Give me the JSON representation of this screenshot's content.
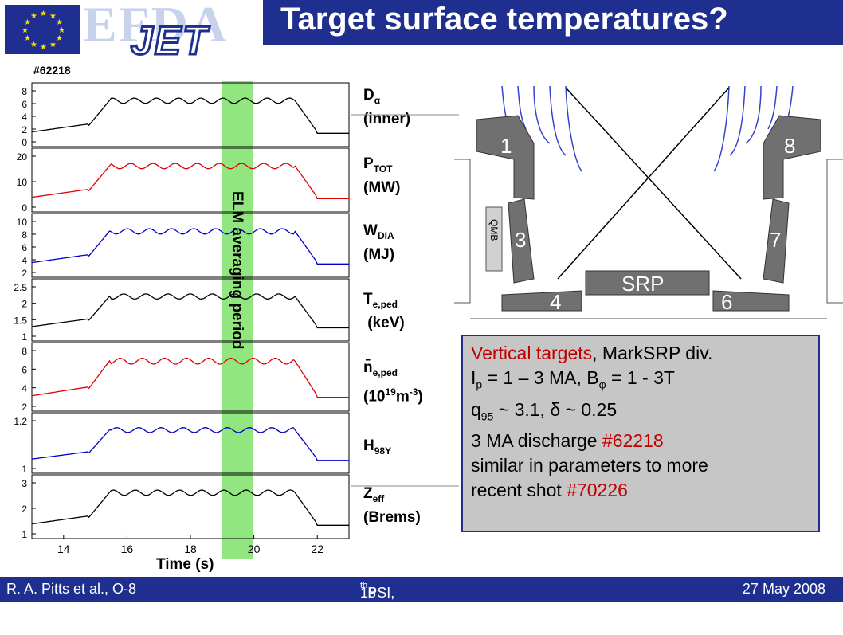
{
  "header": {
    "efda": "EFDA",
    "jet": "JET",
    "title": "Target surface temperatures?"
  },
  "plots": {
    "shot": "#62218",
    "band_label": "ELM averaging period",
    "xlabel": "Time (s)",
    "xticks": [
      "14",
      "16",
      "18",
      "20",
      "22"
    ],
    "panels": [
      {
        "label_main": "D",
        "label_sub": "α",
        "label_line2": "(inner)",
        "yticks": [
          "8",
          "6",
          "4",
          "2",
          "0"
        ]
      },
      {
        "label_main": "P",
        "label_sub": "TOT",
        "label_line2": "(MW)",
        "yticks": [
          "20",
          "10",
          "0"
        ]
      },
      {
        "label_main": "W",
        "label_sub": "DIA",
        "label_line2": "(MJ)",
        "yticks": [
          "10",
          "8",
          "6",
          "4",
          "2"
        ]
      },
      {
        "label_main": "T",
        "label_sub": "e,ped",
        "label_line2": "(keV)",
        "yticks": [
          "2.5",
          "2",
          "1.5",
          "1"
        ]
      },
      {
        "label_main": "n̄",
        "label_sub": "e,ped",
        "label_line2a": "(10",
        "label_sup": "19",
        "label_line2b": "m",
        "label_sup2": "-3",
        "label_line2c": ")",
        "yticks": [
          "8",
          "6",
          "4",
          "2"
        ]
      },
      {
        "label_main": "H",
        "label_sub": "98Y",
        "label_line2": "",
        "yticks": [
          "1.2",
          "1"
        ]
      },
      {
        "label_main": "Z",
        "label_sub": "eff",
        "label_line2": "(Brems)",
        "yticks": [
          "3",
          "2",
          "1"
        ]
      }
    ]
  },
  "machine": {
    "tiles": [
      "1",
      "8",
      "3",
      "7",
      "SRP",
      "4",
      "6"
    ],
    "qmb": "QMB"
  },
  "info": {
    "line1_red": "Vertical targets",
    "line1_rest": ", MarkSRP div.",
    "line2_a": "I",
    "line2_sub": "p",
    "line2_b": " = 1 – 3 MA, B",
    "line2_sub2": "φ",
    "line2_c": " = 1 - 3T",
    "line3_a": "q",
    "line3_sub": "95",
    "line3_b": " ~ 3.1, δ ~ 0.25",
    "line4_a": "3 MA discharge ",
    "line4_red": "#62218",
    "line5": "similar in parameters to more",
    "line6_a": "recent shot ",
    "line6_red": "#70226"
  },
  "footer": {
    "left": "R. A. Pitts et al., O-8",
    "center_a": "18",
    "center_sup": "th",
    "center_b": " PSI, Toledo, Spain",
    "right": "27 May 2008"
  },
  "colors": {
    "brand": "#1f2f8f",
    "band": "#7fe26a",
    "red": "#e00000",
    "blue": "#0000cc"
  }
}
